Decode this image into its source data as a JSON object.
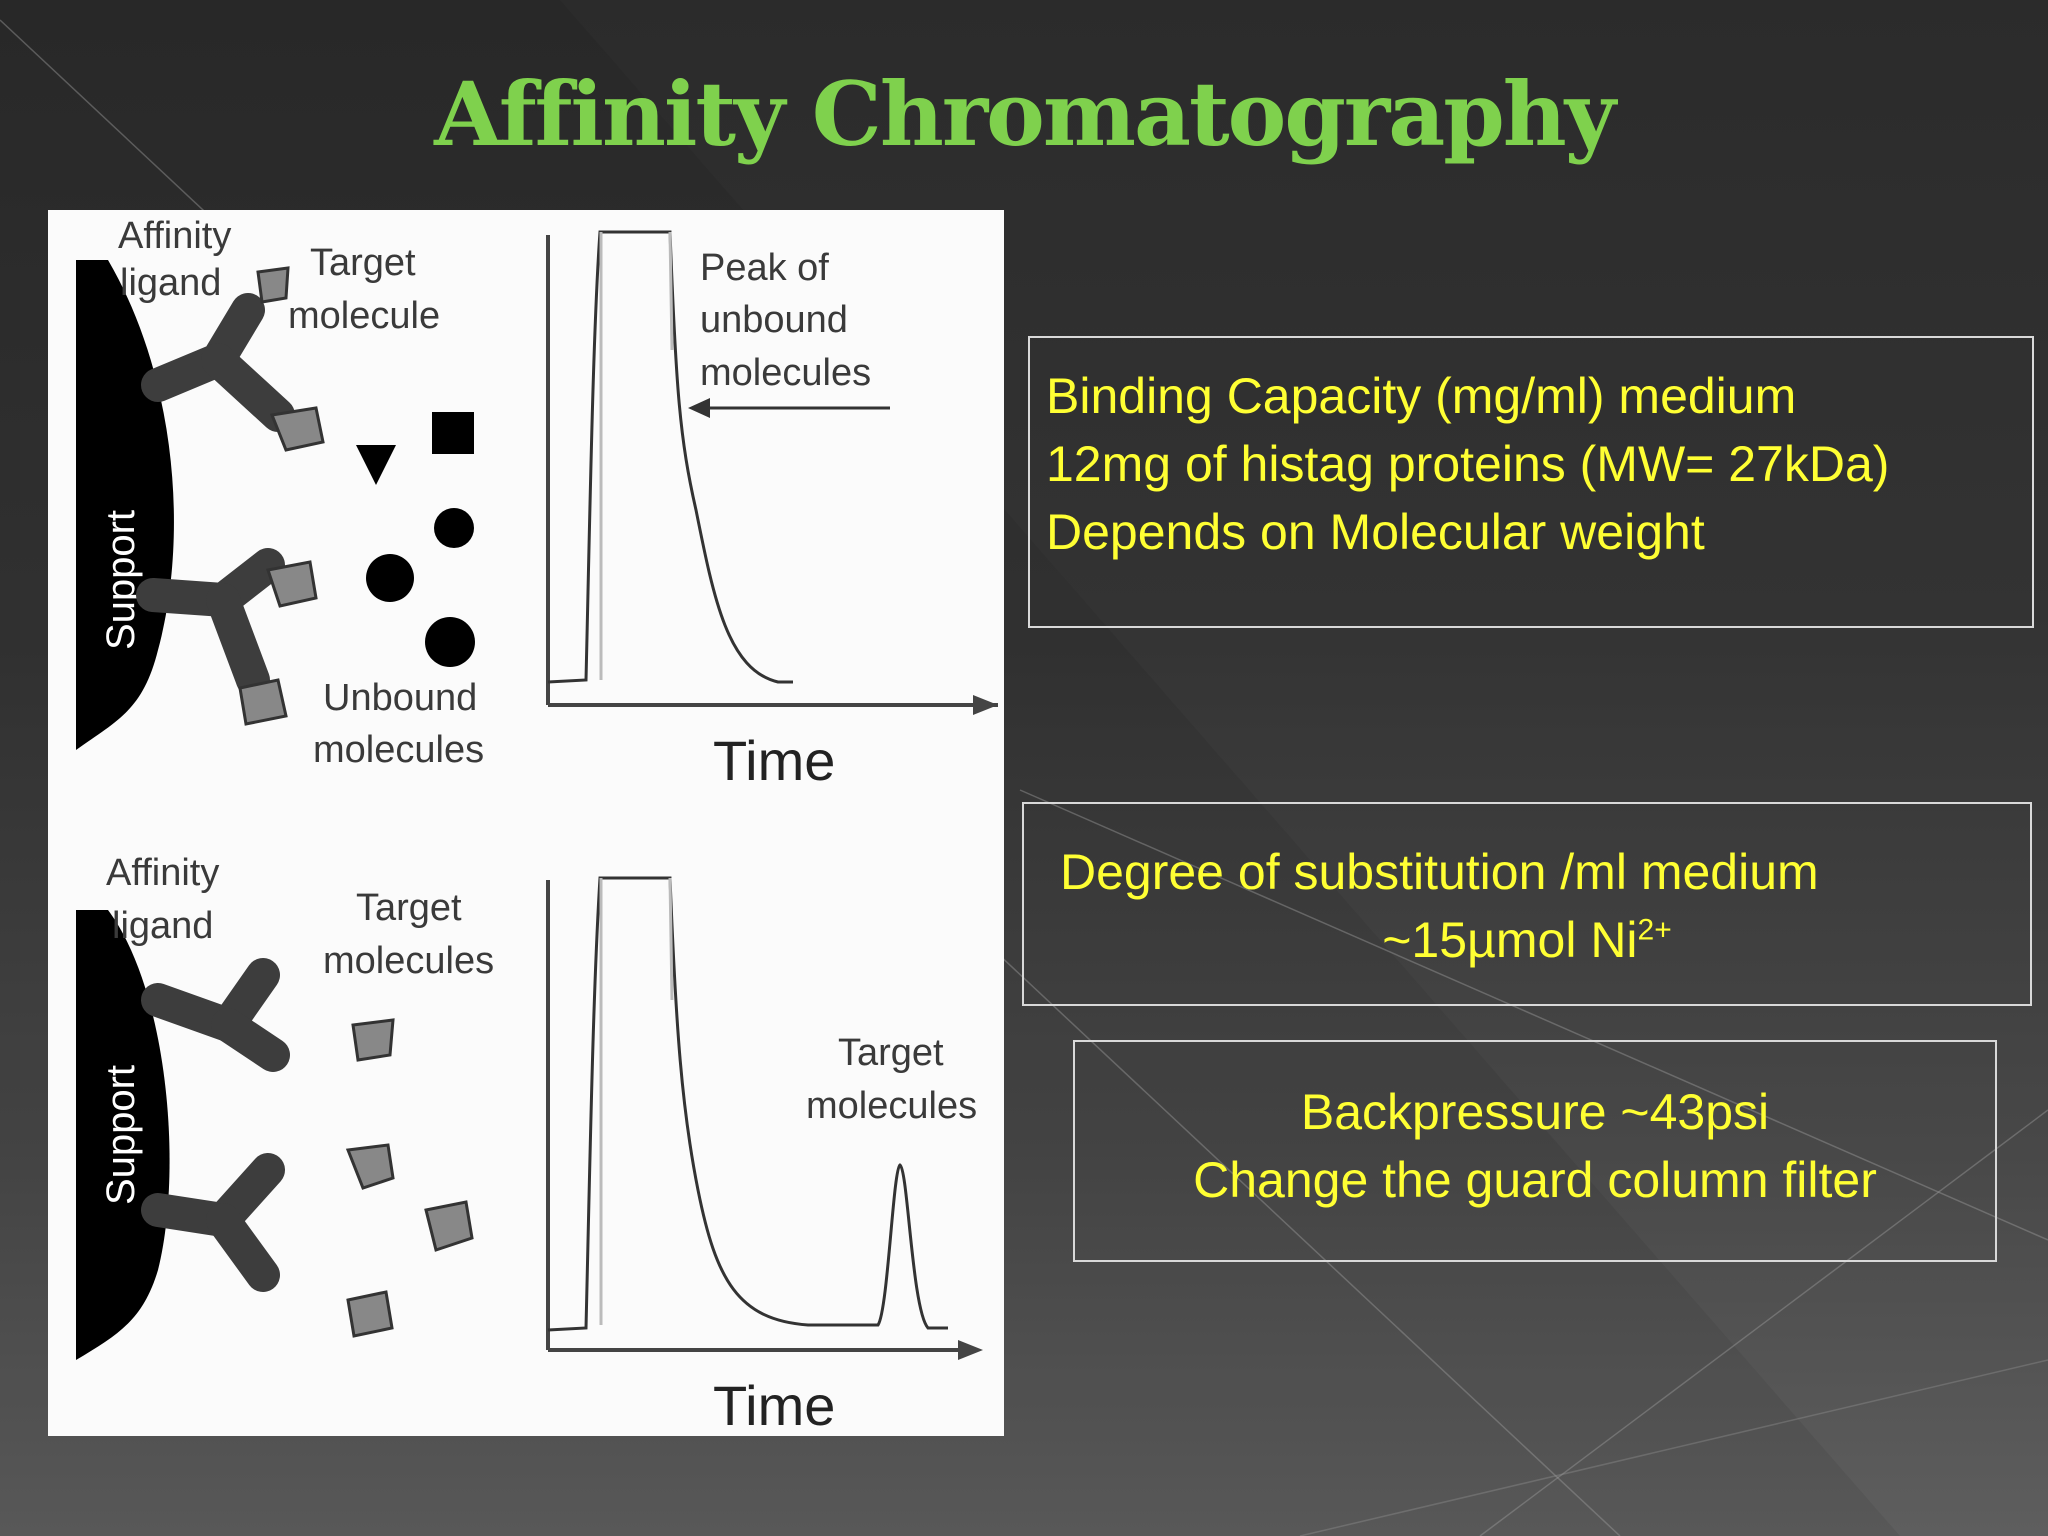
{
  "slide": {
    "title": "Affinity Chromatography"
  },
  "figure": {
    "top": {
      "affinity_ligand": [
        "Affinity",
        "ligand"
      ],
      "target_molecule": [
        "Target",
        "molecule"
      ],
      "support": "Support",
      "unbound": [
        "Unbound",
        "molecules"
      ],
      "peak_label": [
        "Peak of",
        "unbound",
        "molecules"
      ],
      "time": "Time"
    },
    "bottom": {
      "affinity_ligand": [
        "Affinity",
        "ligand"
      ],
      "target_molecules": [
        "Target",
        "molecules"
      ],
      "support": "Support",
      "peak_target": [
        "Target",
        "molecules"
      ],
      "time": "Time"
    }
  },
  "boxes": {
    "binding": {
      "line1": "Binding Capacity (mg/ml) medium",
      "line2": "12mg of histag proteins (MW= 27kDa)",
      "line3": "Depends on Molecular weight"
    },
    "degree": {
      "line1": "Degree of substitution /ml medium",
      "line2_main": "~15µmol Ni",
      "line2_sup": "2+"
    },
    "backpressure": {
      "line1": "Backpressure ~43psi",
      "line2": "Change the guard column filter"
    }
  },
  "colors": {
    "title": "#7fd14d",
    "box_text": "#ffff33",
    "box_border": "#d9d9d9"
  }
}
